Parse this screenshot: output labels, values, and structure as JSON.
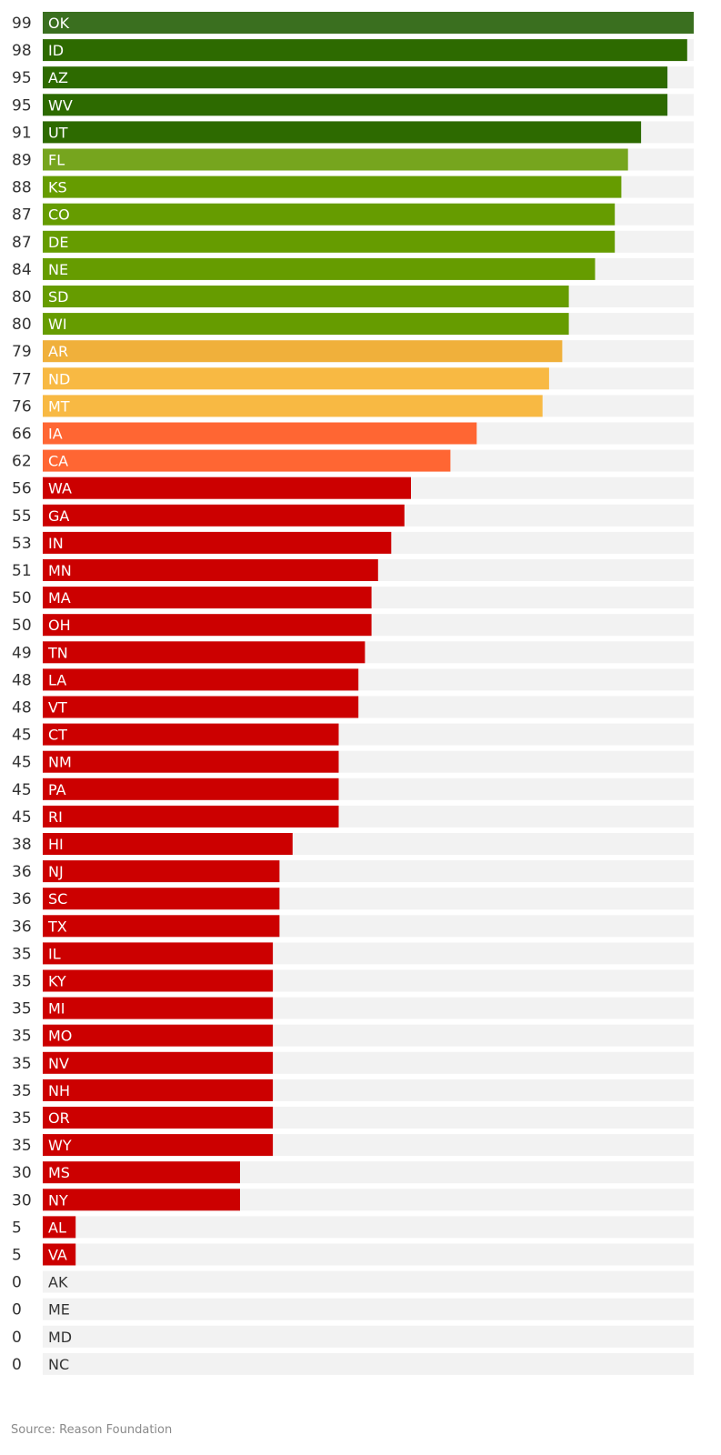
{
  "chart_data": {
    "type": "bar",
    "orientation": "horizontal",
    "categories": [
      "OK",
      "ID",
      "AZ",
      "WV",
      "UT",
      "FL",
      "KS",
      "CO",
      "DE",
      "NE",
      "SD",
      "WI",
      "AR",
      "ND",
      "MT",
      "IA",
      "CA",
      "WA",
      "GA",
      "IN",
      "MN",
      "MA",
      "OH",
      "TN",
      "LA",
      "VT",
      "CT",
      "NM",
      "PA",
      "RI",
      "HI",
      "NJ",
      "SC",
      "TX",
      "IL",
      "KY",
      "MI",
      "MO",
      "NV",
      "NH",
      "OR",
      "WY",
      "MS",
      "NY",
      "AL",
      "VA",
      "AK",
      "ME",
      "MD",
      "NC"
    ],
    "values": [
      99,
      98,
      95,
      95,
      91,
      89,
      88,
      87,
      87,
      84,
      80,
      80,
      79,
      77,
      76,
      66,
      62,
      56,
      55,
      53,
      51,
      50,
      50,
      49,
      48,
      48,
      45,
      45,
      45,
      45,
      38,
      36,
      36,
      36,
      35,
      35,
      35,
      35,
      35,
      35,
      35,
      35,
      30,
      30,
      5,
      5,
      0,
      0,
      0,
      0
    ],
    "colors": [
      "#3a6f1f",
      "#2d6a00",
      "#2d6a00",
      "#2d6a00",
      "#2d6a00",
      "#76a51e",
      "#669c00",
      "#669c00",
      "#669c00",
      "#669c00",
      "#669c00",
      "#669c00",
      "#f0b03b",
      "#f8b943",
      "#f8b943",
      "#ff6633",
      "#ff6633",
      "#cc0000",
      "#cc0000",
      "#cc0000",
      "#cc0000",
      "#cc0000",
      "#cc0000",
      "#cc0000",
      "#cc0000",
      "#cc0000",
      "#cc0000",
      "#cc0000",
      "#cc0000",
      "#cc0000",
      "#cc0000",
      "#cc0000",
      "#cc0000",
      "#cc0000",
      "#cc0000",
      "#cc0000",
      "#cc0000",
      "#cc0000",
      "#cc0000",
      "#cc0000",
      "#cc0000",
      "#cc0000",
      "#cc0000",
      "#cc0000",
      "#cc0000",
      "#cc0000",
      "#cc0000",
      "#cc0000",
      "#cc0000",
      "#cc0000"
    ],
    "track_color": "#f2f2f2",
    "xlim": [
      0,
      99
    ],
    "grid": false,
    "legend": "none",
    "title": "",
    "xlabel": "",
    "ylabel": ""
  },
  "source": "Source: Reason Foundation"
}
